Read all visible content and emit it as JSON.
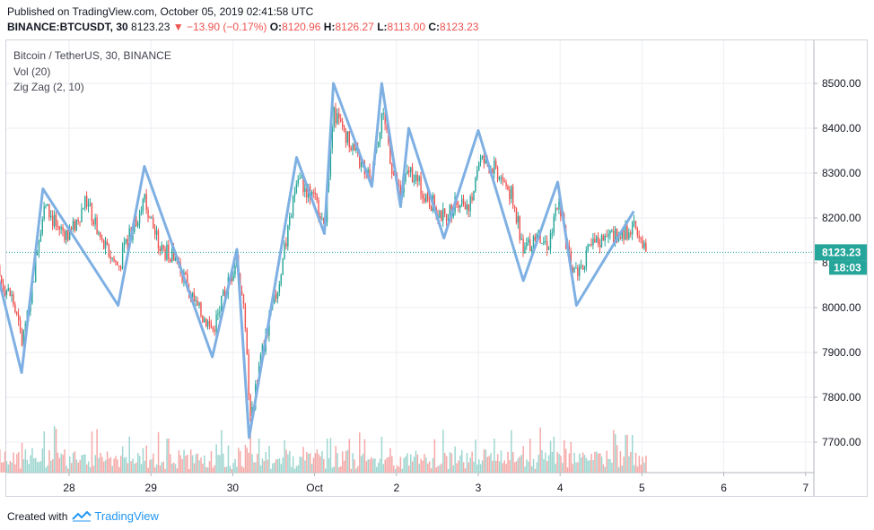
{
  "header": {
    "published": "Published on TradingView.com, October 05, 2019 02:41:58 UTC",
    "symbol": "BINANCE:BTCUSDT, 30",
    "last": "8123.23",
    "change": "▼ −13.90 (−0.17%)",
    "o_label": "O:",
    "o_value": "8120.96",
    "h_label": "H:",
    "h_value": "8126.27",
    "l_label": "L:",
    "l_value": "8113.00",
    "c_label": "C:",
    "c_value": "8123.23"
  },
  "legend": {
    "title": "Bitcoin / TetherUS, 30, BINANCE",
    "volume": "Vol (20)",
    "zigzag": "Zig Zag (2, 10)"
  },
  "price_badge": {
    "price": "8123.23",
    "countdown": "18:03"
  },
  "footer": {
    "created_with": "Created with",
    "brand": "TradingView"
  },
  "colors": {
    "up": "#26a69a",
    "down": "#ef5350",
    "zigzag": "#7fb0e3",
    "grid": "#eceef3",
    "badge": "#26a69a"
  },
  "chart_data": {
    "type": "candlestick",
    "x_ticks": [
      "28",
      "29",
      "30",
      "Oct",
      "2",
      "3",
      "4",
      "5",
      "6",
      "7"
    ],
    "y_ticks": [
      7700,
      7800,
      7900,
      8000,
      8100,
      8200,
      8300,
      8400,
      8500
    ],
    "ylim": [
      7630,
      8580
    ],
    "xlim": [
      27.0,
      7.2
    ],
    "last_price": 8123.23,
    "zigzag_pivots": [
      {
        "x": 27.05,
        "y": 8130
      },
      {
        "x": 27.42,
        "y": 7855
      },
      {
        "x": 27.68,
        "y": 8265
      },
      {
        "x": 28.6,
        "y": 8005
      },
      {
        "x": 28.92,
        "y": 8315
      },
      {
        "x": 29.75,
        "y": 7890
      },
      {
        "x": 30.05,
        "y": 8130
      },
      {
        "x": 30.2,
        "y": 7710
      },
      {
        "x": 30.78,
        "y": 8335
      },
      {
        "x": 31.12,
        "y": 8165
      },
      {
        "x": 31.23,
        "y": 8500
      },
      {
        "x": 31.7,
        "y": 8270
      },
      {
        "x": 31.82,
        "y": 8500
      },
      {
        "x": 32.05,
        "y": 8225
      },
      {
        "x": 32.15,
        "y": 8400
      },
      {
        "x": 32.58,
        "y": 8155
      },
      {
        "x": 33.0,
        "y": 8395
      },
      {
        "x": 33.55,
        "y": 8060
      },
      {
        "x": 33.97,
        "y": 8280
      },
      {
        "x": 34.2,
        "y": 8005
      },
      {
        "x": 34.9,
        "y": 8215
      }
    ],
    "close_path": [
      {
        "x": 27.0,
        "y": 8040
      },
      {
        "x": 27.05,
        "y": 8120
      },
      {
        "x": 27.15,
        "y": 8060
      },
      {
        "x": 27.3,
        "y": 8020
      },
      {
        "x": 27.42,
        "y": 7920
      },
      {
        "x": 27.55,
        "y": 8060
      },
      {
        "x": 27.68,
        "y": 8230
      },
      {
        "x": 27.85,
        "y": 8180
      },
      {
        "x": 28.0,
        "y": 8160
      },
      {
        "x": 28.2,
        "y": 8240
      },
      {
        "x": 28.4,
        "y": 8140
      },
      {
        "x": 28.6,
        "y": 8090
      },
      {
        "x": 28.75,
        "y": 8170
      },
      {
        "x": 28.92,
        "y": 8240
      },
      {
        "x": 29.1,
        "y": 8130
      },
      {
        "x": 29.3,
        "y": 8110
      },
      {
        "x": 29.55,
        "y": 8000
      },
      {
        "x": 29.75,
        "y": 7950
      },
      {
        "x": 29.95,
        "y": 8060
      },
      {
        "x": 30.05,
        "y": 8110
      },
      {
        "x": 30.15,
        "y": 7950
      },
      {
        "x": 30.2,
        "y": 7740
      },
      {
        "x": 30.35,
        "y": 7900
      },
      {
        "x": 30.55,
        "y": 8050
      },
      {
        "x": 30.7,
        "y": 8200
      },
      {
        "x": 30.78,
        "y": 8290
      },
      {
        "x": 30.95,
        "y": 8250
      },
      {
        "x": 31.12,
        "y": 8200
      },
      {
        "x": 31.23,
        "y": 8430
      },
      {
        "x": 31.4,
        "y": 8380
      },
      {
        "x": 31.55,
        "y": 8320
      },
      {
        "x": 31.7,
        "y": 8300
      },
      {
        "x": 31.82,
        "y": 8440
      },
      {
        "x": 31.95,
        "y": 8300
      },
      {
        "x": 32.05,
        "y": 8250
      },
      {
        "x": 32.15,
        "y": 8310
      },
      {
        "x": 32.35,
        "y": 8250
      },
      {
        "x": 32.58,
        "y": 8200
      },
      {
        "x": 32.75,
        "y": 8240
      },
      {
        "x": 32.9,
        "y": 8230
      },
      {
        "x": 33.0,
        "y": 8330
      },
      {
        "x": 33.2,
        "y": 8310
      },
      {
        "x": 33.4,
        "y": 8250
      },
      {
        "x": 33.55,
        "y": 8130
      },
      {
        "x": 33.7,
        "y": 8160
      },
      {
        "x": 33.85,
        "y": 8140
      },
      {
        "x": 33.97,
        "y": 8250
      },
      {
        "x": 34.1,
        "y": 8110
      },
      {
        "x": 34.2,
        "y": 8080
      },
      {
        "x": 34.4,
        "y": 8140
      },
      {
        "x": 34.6,
        "y": 8160
      },
      {
        "x": 34.8,
        "y": 8170
      },
      {
        "x": 34.95,
        "y": 8180
      },
      {
        "x": 35.05,
        "y": 8123
      }
    ]
  }
}
